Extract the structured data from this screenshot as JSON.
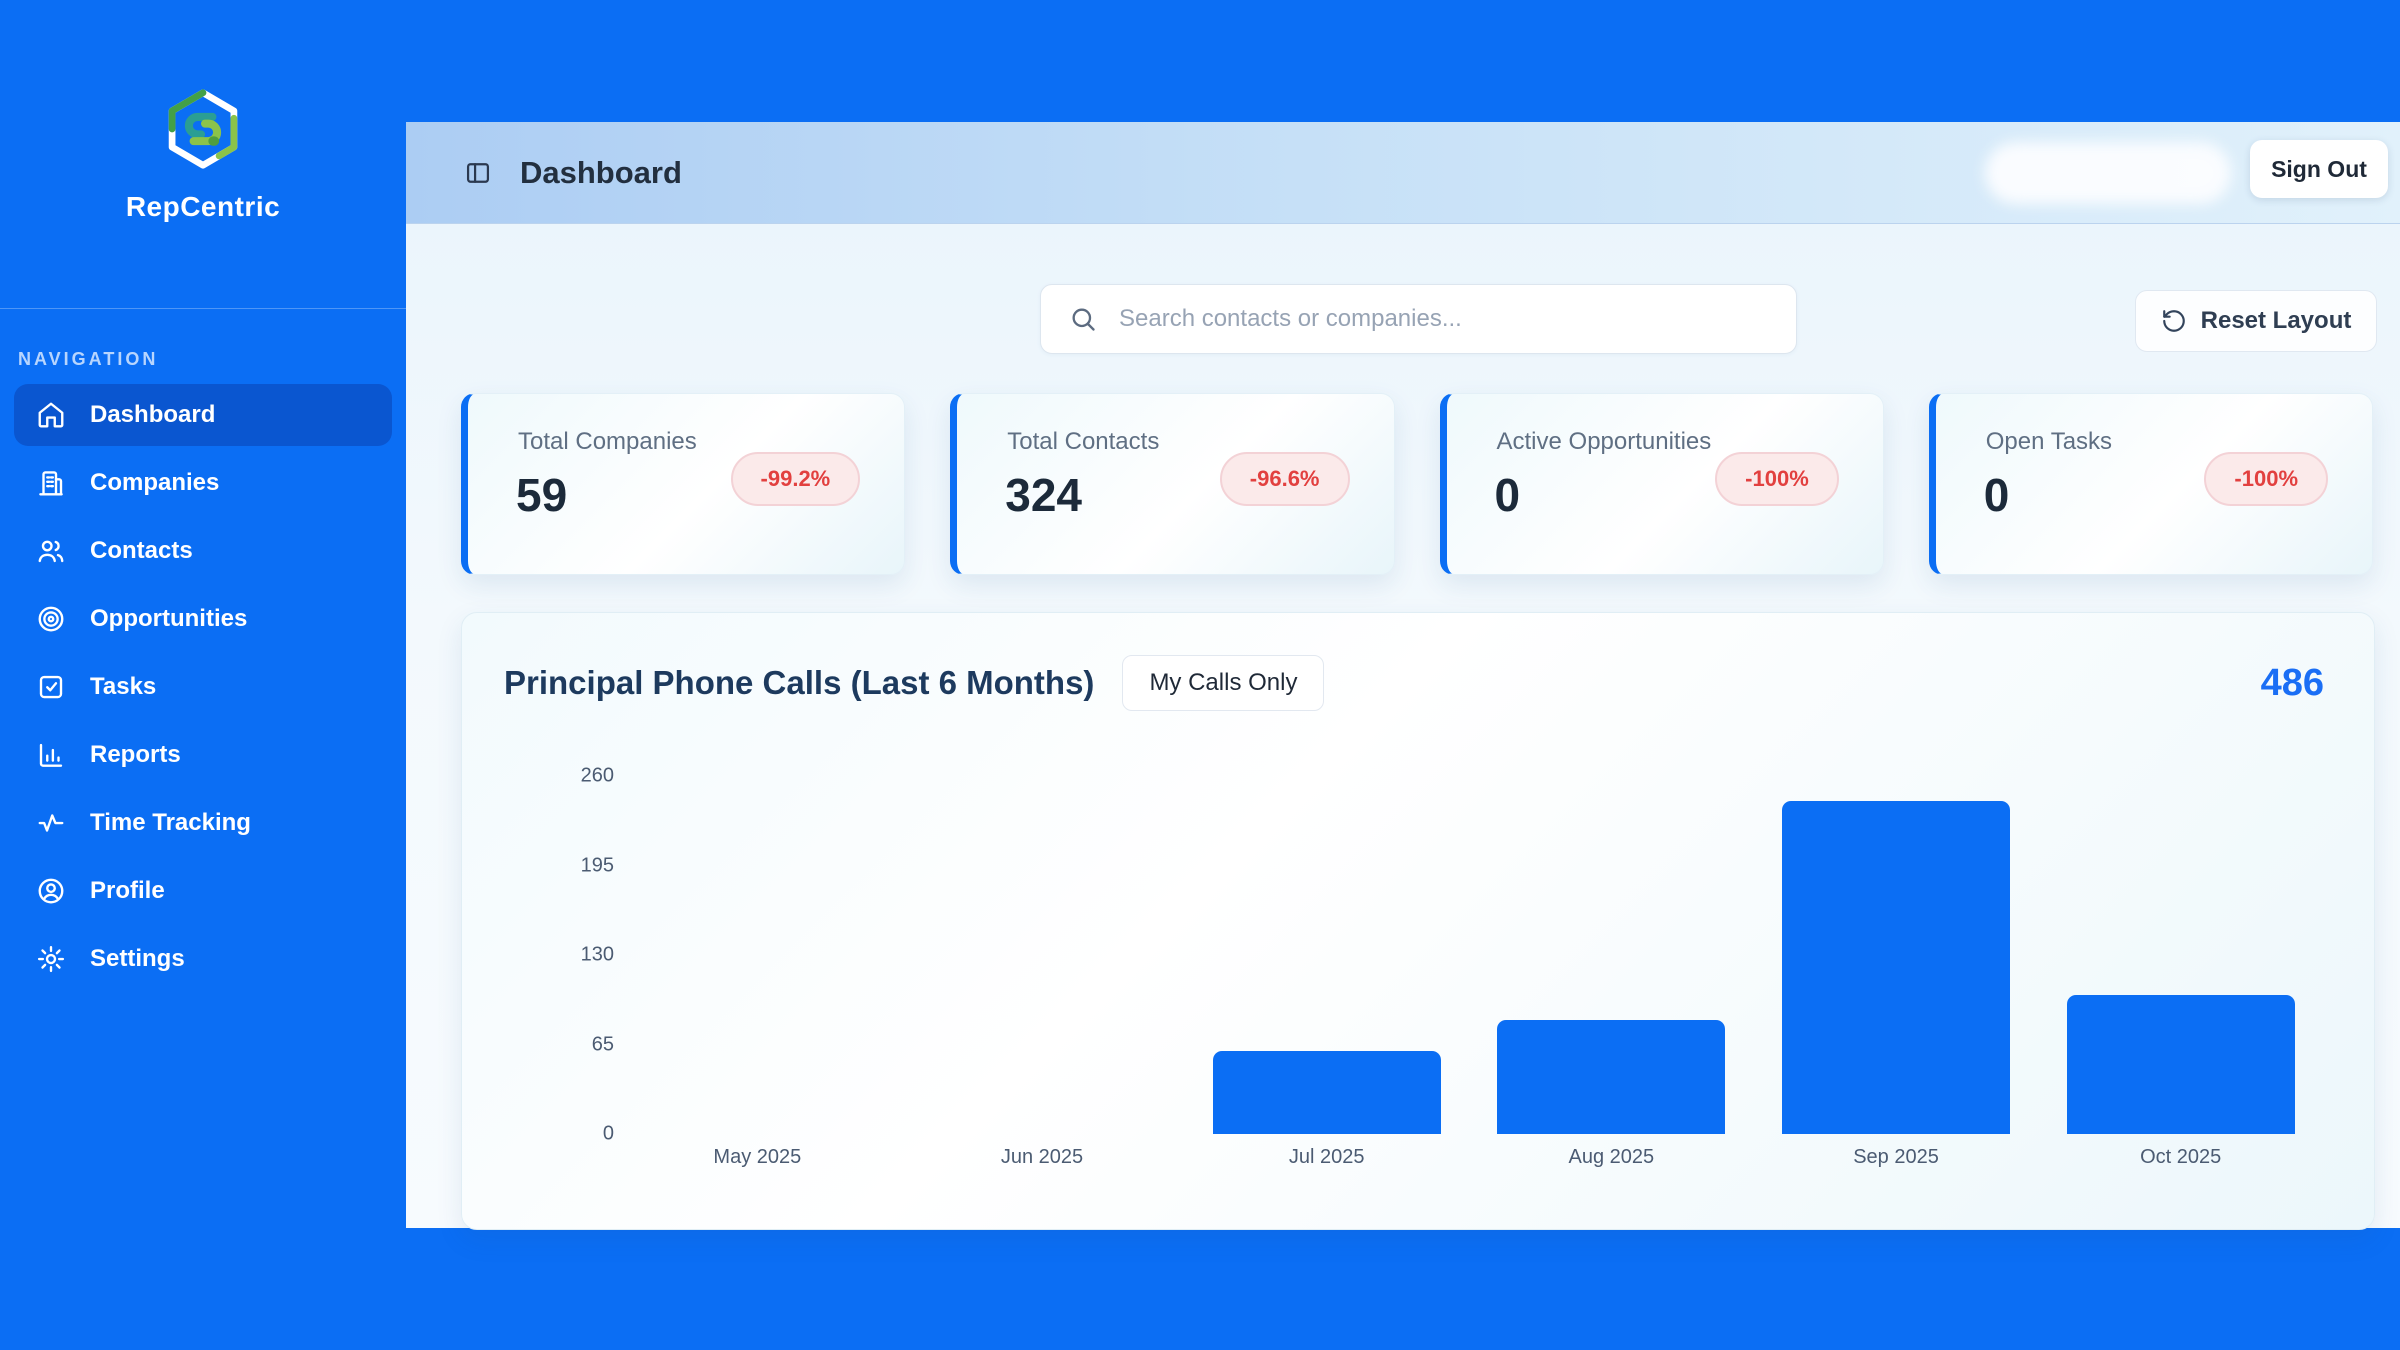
{
  "brand": {
    "name": "RepCentric"
  },
  "sidebar": {
    "section_label": "NAVIGATION",
    "items": [
      {
        "label": "Dashboard",
        "icon": "home-icon",
        "active": true
      },
      {
        "label": "Companies",
        "icon": "building-icon",
        "active": false
      },
      {
        "label": "Contacts",
        "icon": "users-icon",
        "active": false
      },
      {
        "label": "Opportunities",
        "icon": "target-icon",
        "active": false
      },
      {
        "label": "Tasks",
        "icon": "check-square-icon",
        "active": false
      },
      {
        "label": "Reports",
        "icon": "bar-chart-icon",
        "active": false
      },
      {
        "label": "Time Tracking",
        "icon": "activity-icon",
        "active": false
      },
      {
        "label": "Profile",
        "icon": "user-circle-icon",
        "active": false
      },
      {
        "label": "Settings",
        "icon": "gear-icon",
        "active": false
      }
    ]
  },
  "header": {
    "title": "Dashboard",
    "sign_out_label": "Sign Out"
  },
  "toolbar": {
    "search_placeholder": "Search contacts or companies...",
    "reset_label": "Reset Layout"
  },
  "stat_cards": [
    {
      "label": "Total Companies",
      "value": "59",
      "delta": "-99.2%"
    },
    {
      "label": "Total Contacts",
      "value": "324",
      "delta": "-96.6%"
    },
    {
      "label": "Active Opportunities",
      "value": "0",
      "delta": "-100%"
    },
    {
      "label": "Open Tasks",
      "value": "0",
      "delta": "-100%"
    }
  ],
  "chart_card": {
    "title": "Principal Phone Calls (Last 6 Months)",
    "toggle_label": "My Calls Only",
    "total": "486"
  },
  "chart_data": {
    "type": "bar",
    "title": "Principal Phone Calls (Last 6 Months)",
    "categories": [
      "May 2025",
      "Jun 2025",
      "Jul 2025",
      "Aug 2025",
      "Sep 2025",
      "Oct 2025"
    ],
    "values": [
      0,
      0,
      60,
      83,
      242,
      101
    ],
    "total": 486,
    "xlabel": "",
    "ylabel": "",
    "ylim": [
      0,
      260
    ],
    "yticks": [
      0,
      65,
      130,
      195,
      260
    ],
    "grid": false,
    "legend": false,
    "bar_color": "#0b6ef4"
  },
  "colors": {
    "primary_blue": "#0b6ef4",
    "active_nav_blue": "#0a56d0",
    "negative_red": "#e2403f",
    "badge_bg": "#fbeaea",
    "total_blue": "#1a6ef5"
  }
}
